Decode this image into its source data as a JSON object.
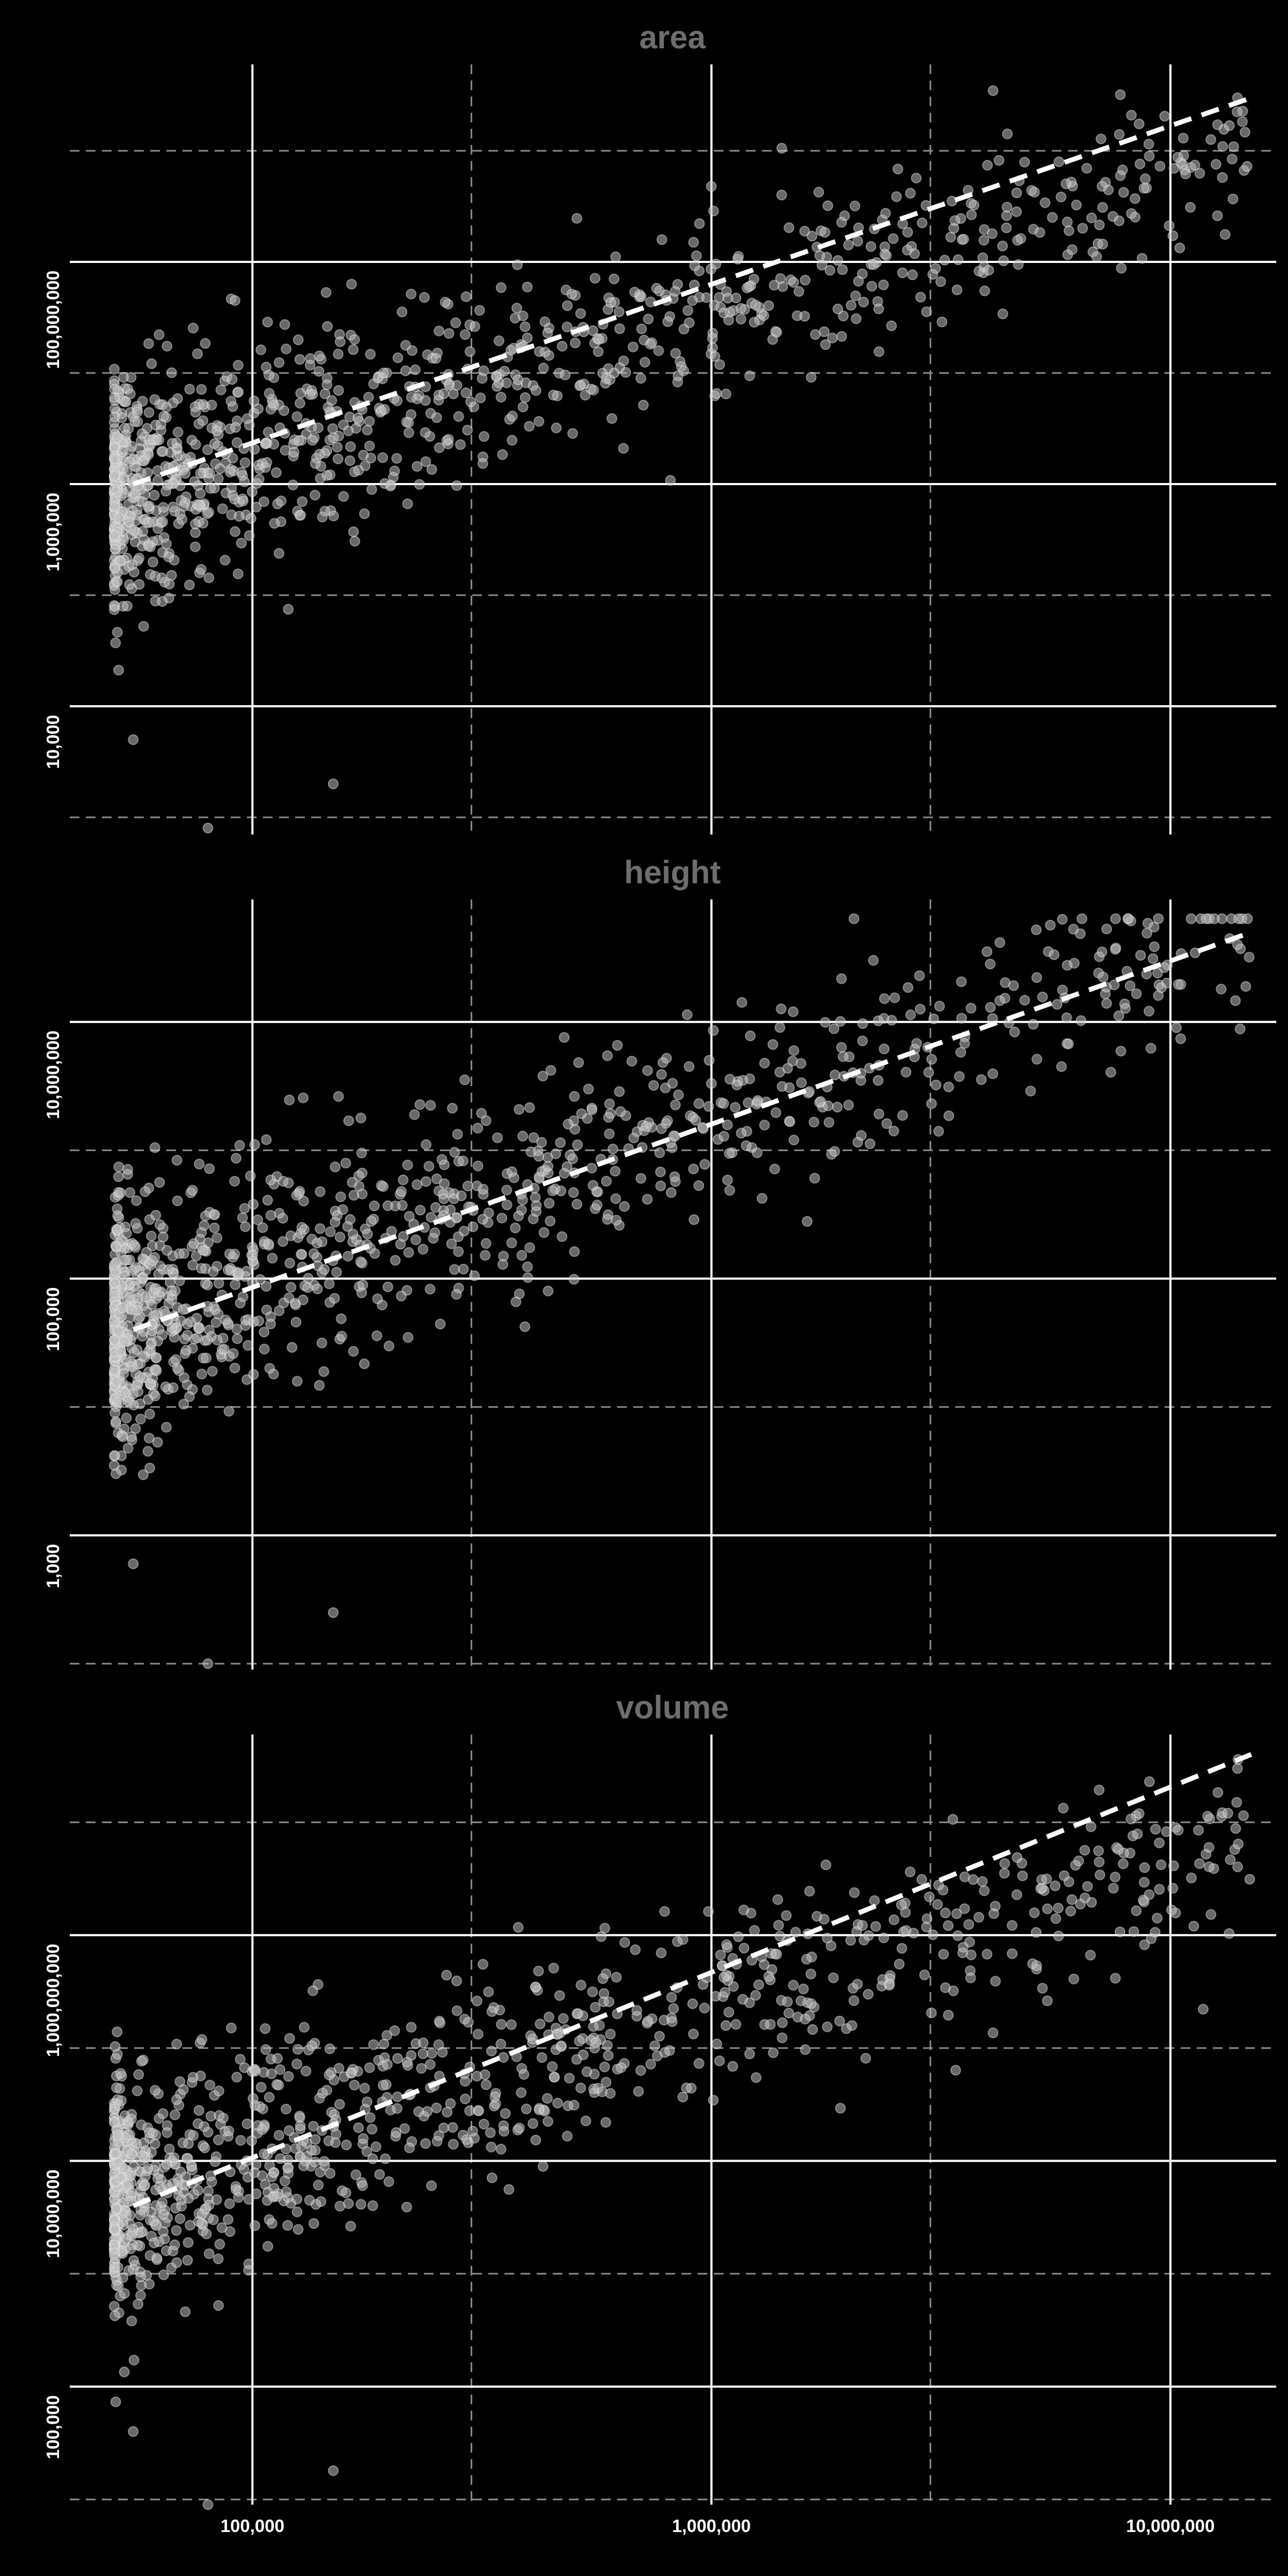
{
  "chart_data": [
    {
      "type": "scatter",
      "title": "area",
      "xscale": "log",
      "yscale": "log",
      "xlim": [
        40000,
        17000000
      ],
      "ylim": [
        700,
        6000000000
      ],
      "x_ticks": [
        100000,
        1000000,
        10000000
      ],
      "x_tick_labels": [
        "100,000",
        "1,000,000",
        "10,000,000"
      ],
      "x_minor_gridlines": [
        300000,
        3000000
      ],
      "y_ticks": [
        10000,
        1000000,
        100000000
      ],
      "y_tick_labels": [
        "10,000",
        "1,000,000",
        "100,000,000"
      ],
      "y_minor_gridlines": [
        1000,
        100000,
        10000000,
        1000000000
      ],
      "grid": true,
      "trend_line": {
        "style": "dashed",
        "from": [
          55000,
          1000000
        ],
        "to": [
          15000000,
          3000000000
        ]
      },
      "point_cloud": {
        "approx_points": 1100,
        "x_range": [
          50000,
          15000000
        ],
        "y_center_law": {
          "at_x": 100000,
          "y": 2000000,
          "log_slope": 1.25,
          "log_spread": 0.6
        },
        "outliers": [
          [
            55000,
            5000
          ],
          [
            80000,
            800
          ],
          [
            150000,
            2000
          ],
          [
            14000000,
            3000000000
          ]
        ]
      }
    },
    {
      "type": "scatter",
      "title": "height",
      "xscale": "log",
      "yscale": "log",
      "xlim": [
        40000,
        17000000
      ],
      "ylim": [
        90,
        90000000
      ],
      "x_ticks": [
        100000,
        1000000,
        10000000
      ],
      "x_tick_labels": [
        "100,000",
        "1,000,000",
        "10,000,000"
      ],
      "x_minor_gridlines": [
        300000,
        3000000
      ],
      "y_ticks": [
        1000,
        100000,
        10000000
      ],
      "y_tick_labels": [
        "1,000",
        "100,000",
        "10,000,000"
      ],
      "y_minor_gridlines": [
        100,
        10000,
        1000000,
        100000000
      ],
      "grid": true,
      "trend_line": {
        "style": "dashed",
        "from": [
          55000,
          40000
        ],
        "to": [
          15000000,
          50000000
        ]
      },
      "point_cloud": {
        "approx_points": 1100,
        "x_range": [
          50000,
          15000000
        ],
        "y_center_law": {
          "at_x": 100000,
          "y": 100000,
          "log_slope": 1.25,
          "log_spread": 0.55
        },
        "outliers": [
          [
            55000,
            600
          ],
          [
            80000,
            100
          ],
          [
            150000,
            250
          ],
          [
            14000000,
            40000000
          ]
        ]
      }
    },
    {
      "type": "scatter",
      "title": "volume",
      "xscale": "log",
      "yscale": "log",
      "xlim": [
        40000,
        17000000
      ],
      "ylim": [
        9000,
        60000000000
      ],
      "x_ticks": [
        100000,
        1000000,
        10000000
      ],
      "x_tick_labels": [
        "100,000",
        "1,000,000",
        "10,000,000"
      ],
      "x_minor_gridlines": [
        300000,
        3000000
      ],
      "y_ticks": [
        100000,
        10000000,
        1000000000
      ],
      "y_tick_labels": [
        "100,000",
        "10,000,000",
        "1,000,000,000"
      ],
      "y_minor_gridlines": [
        10000,
        1000000,
        100000000,
        10000000000
      ],
      "grid": true,
      "trend_line": {
        "style": "dashed",
        "from": [
          55000,
          4000000
        ],
        "to": [
          15000000,
          40000000000
        ]
      },
      "point_cloud": {
        "approx_points": 1100,
        "x_range": [
          50000,
          15000000
        ],
        "y_center_law": {
          "at_x": 100000,
          "y": 12000000,
          "log_slope": 1.3,
          "log_spread": 0.6
        },
        "outliers": [
          [
            55000,
            40000
          ],
          [
            80000,
            9000
          ],
          [
            150000,
            18000
          ],
          [
            14000000,
            30000000000
          ]
        ]
      }
    }
  ]
}
